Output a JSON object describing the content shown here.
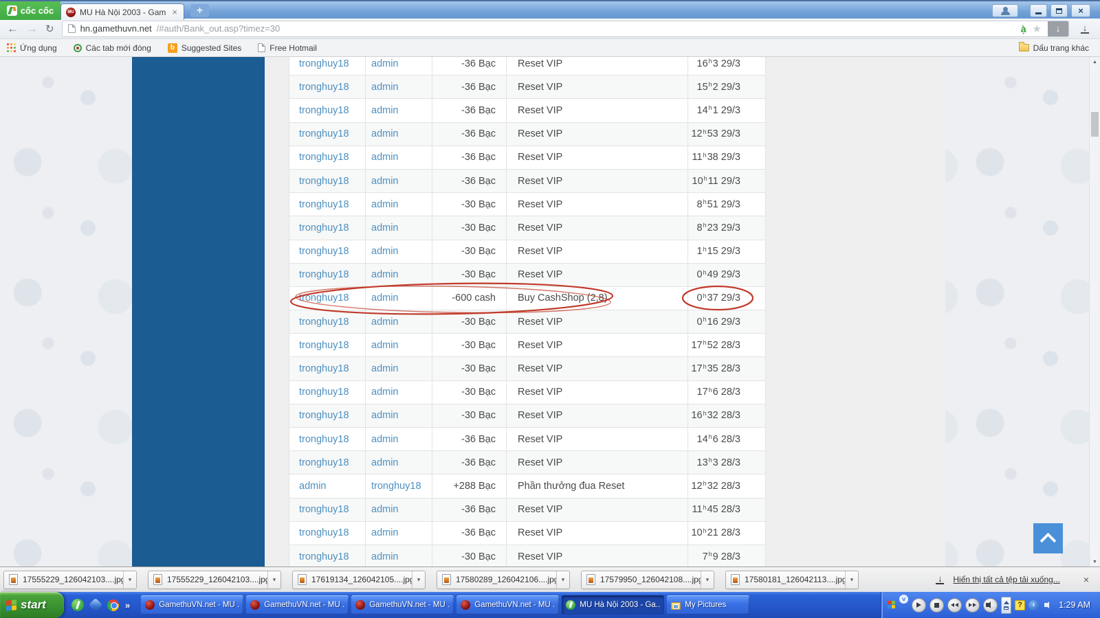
{
  "window": {
    "brand": "cốc cốc",
    "controls": {
      "close": "×"
    }
  },
  "tab": {
    "favicon": "MU",
    "title": "MU Hà Nội 2003 - GamethuVN",
    "close": "×",
    "new_tab": "+"
  },
  "navigation": {
    "back": "←",
    "forward": "→",
    "reload": "↻",
    "url_host": "hn.gamethuvn.net",
    "url_path": "/#auth/Bank_out.asp?timez=30",
    "vn_badge": "ạ̀",
    "star": "★",
    "download_arrow": "↓"
  },
  "bookmarks": {
    "items": [
      {
        "label": "Ứng dụng",
        "icon": "apps-grid-icon"
      },
      {
        "label": "Các tab mới đóng",
        "icon": "recently-closed-icon"
      },
      {
        "label": "Suggested Sites",
        "icon": "suggested-sites-icon",
        "badge": "b"
      },
      {
        "label": "Free Hotmail",
        "icon": "page-icon"
      }
    ],
    "other": "Dấu trang khác"
  },
  "table": {
    "sup": "h",
    "rows": [
      {
        "from": "tronghuy18",
        "to": "admin",
        "amount": "-36 Bạc",
        "desc": "Reset VIP",
        "h": "16",
        "rest": "3 29/3"
      },
      {
        "from": "tronghuy18",
        "to": "admin",
        "amount": "-36 Bạc",
        "desc": "Reset VIP",
        "h": "15",
        "rest": "2 29/3"
      },
      {
        "from": "tronghuy18",
        "to": "admin",
        "amount": "-36 Bạc",
        "desc": "Reset VIP",
        "h": "14",
        "rest": "1 29/3"
      },
      {
        "from": "tronghuy18",
        "to": "admin",
        "amount": "-36 Bạc",
        "desc": "Reset VIP",
        "h": "12",
        "rest": "53 29/3"
      },
      {
        "from": "tronghuy18",
        "to": "admin",
        "amount": "-36 Bạc",
        "desc": "Reset VIP",
        "h": "11",
        "rest": "38 29/3"
      },
      {
        "from": "tronghuy18",
        "to": "admin",
        "amount": "-36 Bạc",
        "desc": "Reset VIP",
        "h": "10",
        "rest": "11 29/3"
      },
      {
        "from": "tronghuy18",
        "to": "admin",
        "amount": "-30 Bạc",
        "desc": "Reset VIP",
        "h": "8",
        "rest": "51 29/3"
      },
      {
        "from": "tronghuy18",
        "to": "admin",
        "amount": "-30 Bạc",
        "desc": "Reset VIP",
        "h": "8",
        "rest": "23 29/3"
      },
      {
        "from": "tronghuy18",
        "to": "admin",
        "amount": "-30 Bạc",
        "desc": "Reset VIP",
        "h": "1",
        "rest": "15 29/3"
      },
      {
        "from": "tronghuy18",
        "to": "admin",
        "amount": "-30 Bạc",
        "desc": "Reset VIP",
        "h": "0",
        "rest": "49 29/3"
      },
      {
        "from": "tronghuy18",
        "to": "admin",
        "amount": "-600 cash",
        "desc": "Buy CashShop (2,8)",
        "h": "0",
        "rest": "37 29/3"
      },
      {
        "from": "tronghuy18",
        "to": "admin",
        "amount": "-30 Bạc",
        "desc": "Reset VIP",
        "h": "0",
        "rest": "16 29/3"
      },
      {
        "from": "tronghuy18",
        "to": "admin",
        "amount": "-30 Bạc",
        "desc": "Reset VIP",
        "h": "17",
        "rest": "52 28/3"
      },
      {
        "from": "tronghuy18",
        "to": "admin",
        "amount": "-30 Bạc",
        "desc": "Reset VIP",
        "h": "17",
        "rest": "35 28/3"
      },
      {
        "from": "tronghuy18",
        "to": "admin",
        "amount": "-30 Bạc",
        "desc": "Reset VIP",
        "h": "17",
        "rest": "6 28/3"
      },
      {
        "from": "tronghuy18",
        "to": "admin",
        "amount": "-30 Bạc",
        "desc": "Reset VIP",
        "h": "16",
        "rest": "32 28/3"
      },
      {
        "from": "tronghuy18",
        "to": "admin",
        "amount": "-36 Bạc",
        "desc": "Reset VIP",
        "h": "14",
        "rest": "6 28/3"
      },
      {
        "from": "tronghuy18",
        "to": "admin",
        "amount": "-36 Bạc",
        "desc": "Reset VIP",
        "h": "13",
        "rest": "3 28/3"
      },
      {
        "from": "admin",
        "to": "tronghuy18",
        "amount": "+288 Bạc",
        "desc": "Phần thưởng đua Reset",
        "h": "12",
        "rest": "32 28/3"
      },
      {
        "from": "tronghuy18",
        "to": "admin",
        "amount": "-36 Bạc",
        "desc": "Reset VIP",
        "h": "11",
        "rest": "45 28/3"
      },
      {
        "from": "tronghuy18",
        "to": "admin",
        "amount": "-36 Bạc",
        "desc": "Reset VIP",
        "h": "10",
        "rest": "21 28/3"
      },
      {
        "from": "tronghuy18",
        "to": "admin",
        "amount": "-30 Bạc",
        "desc": "Reset VIP",
        "h": "7",
        "rest": "9 28/3"
      }
    ]
  },
  "annotations": {
    "color": "#c13a2a",
    "circled_row_index": 10
  },
  "page": {
    "scrollbar_up": "▲",
    "scrollbar_down": "▼"
  },
  "downloads": {
    "caret": "▾",
    "items": [
      "17555229_126042103....jpg",
      "17555229_126042103....jpg",
      "17619134_126042105....jpg",
      "17580289_126042106....jpg",
      "17579950_126042108....jpg",
      "17580181_126042113....jpg"
    ],
    "show_all": "Hiển thị tất cả tệp tải xuống...",
    "close": "×"
  },
  "taskbar": {
    "start": "start",
    "quick_launch_icons": [
      "coccoc-icon",
      "gem-icon",
      "chrome-icon"
    ],
    "overflow": "»",
    "windows": [
      {
        "title": "GamethuVN.net - MU ...",
        "icon": "mu",
        "active": false
      },
      {
        "title": "GamethuVN.net - MU ...",
        "icon": "mu",
        "active": false
      },
      {
        "title": "GamethuVN.net - MU ...",
        "icon": "mu",
        "active": false
      },
      {
        "title": "GamethuVN.net - MU ...",
        "icon": "mu",
        "active": false
      },
      {
        "title": "MU Hà Nội 2003 - Ga...",
        "icon": "coccoc",
        "active": true
      },
      {
        "title": "My Pictures",
        "icon": "pictures",
        "active": false
      }
    ],
    "media_icons": [
      "windows-flag",
      "chevron-expand",
      "play",
      "stop",
      "previous",
      "next",
      "volume",
      "collapse-band"
    ],
    "tray": {
      "help": "?",
      "back": "‹"
    },
    "clock": "1:29 AM"
  }
}
